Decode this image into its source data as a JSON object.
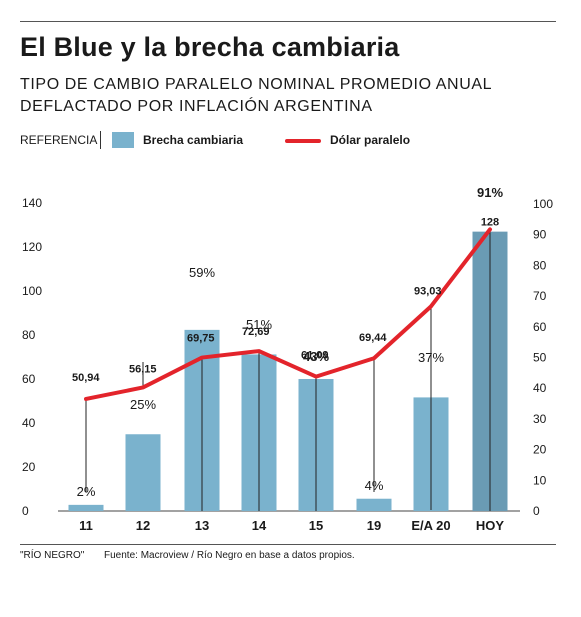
{
  "header": {
    "title": "El Blue y la brecha cambiaria",
    "subtitle": "TIPO DE CAMBIO PARALELO NOMINAL PROMEDIO ANUAL DEFLACTADO POR INFLACIÓN ARGENTINA"
  },
  "legend": {
    "reference_label": "REFERENCIA",
    "bar_label": "Brecha cambiaria",
    "line_label": "Dólar paralelo"
  },
  "footer": {
    "source_left": "\"RÍO NEGRO\"",
    "source_right": "Fuente: Macroview / Río Negro en base a datos propios."
  },
  "colors": {
    "bar": "#7ab2cd",
    "bar_highlight": "#6a9bb4",
    "line": "#e3242b",
    "text": "#1a1a1a"
  },
  "chart_data": {
    "type": "bar",
    "categories": [
      "11",
      "12",
      "13",
      "14",
      "15",
      "19",
      "E/A 20",
      "HOY"
    ],
    "series": [
      {
        "name": "Brecha cambiaria",
        "type": "bar",
        "axis": "right",
        "values": [
          2,
          25,
          59,
          51,
          43,
          4,
          37,
          91
        ],
        "labels": [
          "2%",
          "25%",
          "59%",
          "51%",
          "43%",
          "4%",
          "37%",
          "91%"
        ]
      },
      {
        "name": "Dólar paralelo",
        "type": "line",
        "axis": "left",
        "values": [
          50.94,
          56.15,
          69.75,
          72.69,
          61.09,
          69.44,
          93.03,
          128
        ],
        "labels": [
          "50,94",
          "56,15",
          "69,75",
          "72,69",
          "61,09",
          "69,44",
          "93,03",
          "128"
        ]
      }
    ],
    "y_left": {
      "ticks": [
        0,
        20,
        40,
        60,
        80,
        100,
        120,
        140
      ],
      "range": [
        0,
        160
      ]
    },
    "y_right": {
      "ticks": [
        0,
        10,
        20,
        30,
        40,
        50,
        60,
        70,
        80,
        90,
        100
      ],
      "range": [
        0,
        100
      ]
    },
    "grid": false,
    "legend_position": "top"
  }
}
